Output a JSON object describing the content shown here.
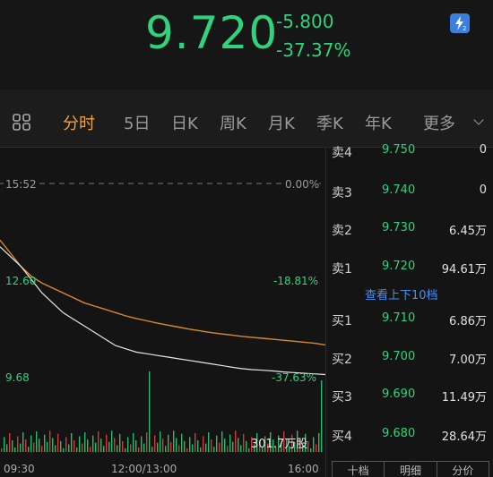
{
  "quote": {
    "price": "9.720",
    "change": "-5.800",
    "change_pct": "-37.37%",
    "badge_icon": "lightning-badge-icon",
    "up_color": "#2fd37c"
  },
  "tabs": [
    {
      "label": "分时",
      "active": true
    },
    {
      "label": "5日"
    },
    {
      "label": "日K"
    },
    {
      "label": "周K"
    },
    {
      "label": "月K"
    },
    {
      "label": "季K"
    },
    {
      "label": "年K"
    },
    {
      "label": "更多"
    }
  ],
  "chart": {
    "top_time": "15:52",
    "top_pct": "0.00%",
    "mid_price": "12.60",
    "mid_pct": "-18.81%",
    "low_price": "9.68",
    "low_pct": "-37.63%",
    "volume": "301.7万股",
    "x_labels": [
      "09:30",
      "12:00/13:00",
      "16:00"
    ]
  },
  "chart_data": {
    "type": "line",
    "series": [
      {
        "values": [
          13.6,
          13.3,
          13.0,
          12.6,
          12.2,
          11.9,
          11.6,
          11.4,
          11.2,
          11.0,
          10.8,
          10.6,
          10.5,
          10.4,
          10.35,
          10.3,
          10.25,
          10.2,
          10.15,
          10.1,
          10.05,
          10.0,
          9.95,
          9.9,
          9.87,
          9.85,
          9.83,
          9.8,
          9.78,
          9.76,
          9.74,
          9.72
        ]
      },
      {
        "values": [
          13.8,
          13.4,
          13.0,
          12.7,
          12.5,
          12.35,
          12.2,
          12.05,
          11.9,
          11.8,
          11.7,
          11.6,
          11.5,
          11.42,
          11.35,
          11.28,
          11.22,
          11.16,
          11.1,
          11.05,
          11.0,
          10.96,
          10.92,
          10.88,
          10.85,
          10.82,
          10.79,
          10.76,
          10.73,
          10.7,
          10.67,
          10.62
        ]
      }
    ],
    "ylim": [
      9.68,
      15.52
    ],
    "ticks_left": [
      "12.60",
      "9.68"
    ],
    "ticks_right": [
      "0.00%",
      "-18.81%",
      "-37.63%"
    ],
    "x_labels": [
      "09:30",
      "12:00/13:00",
      "16:00"
    ],
    "colors": {
      "price": "#e6e6e6",
      "avg": "#d98a2b",
      "volume_up": "#d23a3a",
      "volume_down": "#2fb86a"
    }
  },
  "book": {
    "rows": [
      {
        "side": "卖4",
        "price": "9.750",
        "vol": "0"
      },
      {
        "side": "卖3",
        "price": "9.740",
        "vol": "0"
      },
      {
        "side": "卖2",
        "price": "9.730",
        "vol": "6.45万"
      },
      {
        "side": "卖1",
        "price": "9.720",
        "vol": "94.61万"
      },
      {
        "side": "买1",
        "price": "9.710",
        "vol": "6.86万"
      },
      {
        "side": "买2",
        "price": "9.700",
        "vol": "7.00万"
      },
      {
        "side": "买3",
        "price": "9.690",
        "vol": "11.49万"
      },
      {
        "side": "买4",
        "price": "9.680",
        "vol": "28.64万"
      }
    ],
    "see_more": "查看上下10档",
    "bottom_tabs": [
      "十档",
      "明细",
      "分价"
    ]
  }
}
